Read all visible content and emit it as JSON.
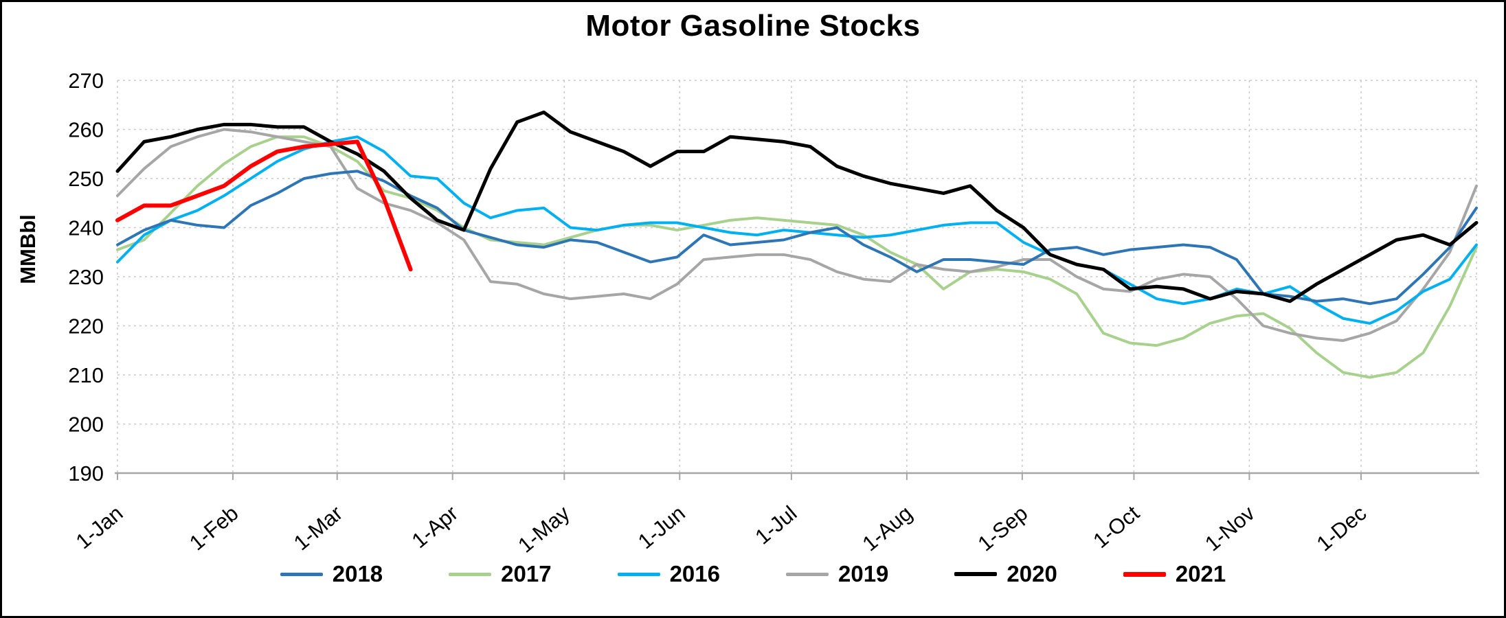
{
  "title": "Motor Gasoline Stocks",
  "chart_data": {
    "type": "line",
    "title": "Motor Gasoline Stocks",
    "xlabel": "",
    "ylabel": "MMBbl",
    "ylim": [
      190,
      270
    ],
    "yticks": [
      190,
      200,
      210,
      220,
      230,
      240,
      250,
      260,
      270
    ],
    "x_tick_labels": [
      "1-Jan",
      "1-Feb",
      "1-Mar",
      "1-Apr",
      "1-May",
      "1-Jun",
      "1-Jul",
      "1-Aug",
      "1-Sep",
      "1-Oct",
      "1-Nov",
      "1-Dec"
    ],
    "x_unit": "weekly points spanning one calendar year",
    "grid": true,
    "gridline_color": "#c9c9c9",
    "axis_color": "#a6a6a6",
    "legend_position": "bottom",
    "series": [
      {
        "name": "2018",
        "color": "#2e75b6",
        "width": 4,
        "values": [
          236.5,
          239.5,
          241.5,
          240.5,
          240,
          244.5,
          247,
          250,
          251,
          251.5,
          249.5,
          246.5,
          244,
          239.5,
          238,
          236.5,
          236,
          237.5,
          237,
          235,
          233,
          234,
          238.5,
          236.5,
          237,
          237.5,
          239,
          240,
          236.5,
          234,
          231,
          233.5,
          233.5,
          233,
          232.5,
          235.5,
          236,
          234.5,
          235.5,
          236,
          236.5,
          236,
          233.5,
          226.5,
          226,
          225,
          225.5,
          224.5,
          225.5,
          230.5,
          236,
          244
        ]
      },
      {
        "name": "2017",
        "color": "#a9d18e",
        "width": 4,
        "values": [
          235.5,
          237.5,
          243,
          248.5,
          253,
          256.5,
          258.5,
          258.5,
          256.5,
          253.5,
          247.5,
          246,
          243.5,
          240,
          237.5,
          237,
          236.5,
          238,
          239.5,
          240.5,
          240.5,
          239.5,
          240.5,
          241.5,
          242,
          241.5,
          241,
          240.5,
          238.5,
          235,
          232.5,
          227.5,
          231,
          231.5,
          231,
          229.5,
          226.5,
          218.5,
          216.5,
          216,
          217.5,
          220.5,
          222,
          222.5,
          219.5,
          214.5,
          210.5,
          209.5,
          210.5,
          214.5,
          224,
          236
        ]
      },
      {
        "name": "2016",
        "color": "#00b0f0",
        "width": 4,
        "values": [
          233,
          238.5,
          241.5,
          243.5,
          246.5,
          250,
          253.5,
          256,
          257.5,
          258.5,
          255.5,
          250.5,
          250,
          245,
          242,
          243.5,
          244,
          240,
          239.5,
          240.5,
          241,
          241,
          240,
          239,
          238.5,
          239.5,
          239,
          238.5,
          238,
          238.5,
          239.5,
          240.5,
          241,
          241,
          237,
          234.5,
          232.5,
          231.5,
          228.5,
          225.5,
          224.5,
          225.5,
          227.5,
          226.5,
          228,
          224.5,
          221.5,
          220.5,
          223,
          227,
          229.5,
          236.5
        ]
      },
      {
        "name": "2019",
        "color": "#a6a6a6",
        "width": 4,
        "values": [
          246.5,
          252,
          256.5,
          258.5,
          260,
          259.5,
          258.5,
          257.5,
          256.5,
          248,
          245,
          243.5,
          241,
          237.5,
          229,
          228.5,
          226.5,
          225.5,
          226,
          226.5,
          225.5,
          228.5,
          233.5,
          234,
          234.5,
          234.5,
          233.5,
          231,
          229.5,
          229,
          232.5,
          231.5,
          231,
          232,
          233.5,
          233.5,
          230,
          227.5,
          227,
          229.5,
          230.5,
          230,
          225.5,
          220,
          218.5,
          217.5,
          217,
          218.5,
          221,
          227.5,
          235,
          248.5
        ]
      },
      {
        "name": "2020",
        "color": "#000000",
        "width": 5,
        "values": [
          251.5,
          257.5,
          258.5,
          260,
          261,
          261,
          260.5,
          260.5,
          257.5,
          255,
          251.5,
          246,
          241.5,
          239.5,
          252,
          261.5,
          263.5,
          259.5,
          257.5,
          255.5,
          252.5,
          255.5,
          255.5,
          258.5,
          258,
          257.5,
          256.5,
          252.5,
          250.5,
          249,
          248,
          247,
          248.5,
          243.5,
          240,
          234.5,
          232.5,
          231.5,
          227.5,
          228,
          227.5,
          225.5,
          227,
          226.5,
          225,
          228.5,
          231.5,
          234.5,
          237.5,
          238.5,
          236.5,
          241
        ]
      },
      {
        "name": "2021",
        "color": "#ff0000",
        "width": 6,
        "values": [
          241.5,
          244.5,
          244.5,
          246.5,
          248.5,
          252.5,
          255.5,
          256.5,
          257,
          257.5,
          246,
          231.5
        ]
      }
    ]
  },
  "legend": {
    "items": [
      "2018",
      "2017",
      "2016",
      "2019",
      "2020",
      "2021"
    ]
  }
}
